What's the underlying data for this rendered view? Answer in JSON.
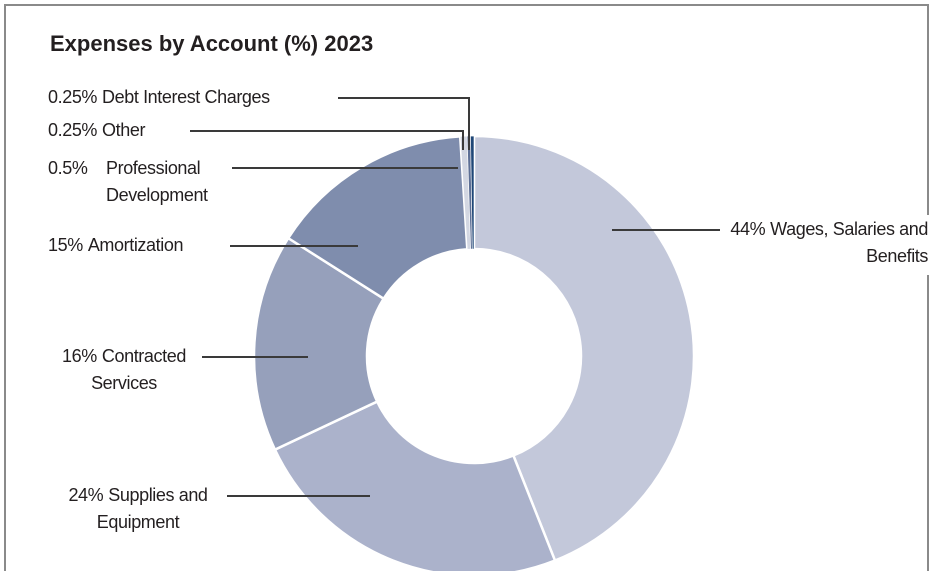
{
  "chart_data": {
    "type": "donut",
    "title": "Expenses by Account (%) 2023",
    "categories": [
      "Wages, Salaries and Benefits",
      "Supplies and Equipment",
      "Contracted Services",
      "Amortization",
      "Professional Development",
      "Other",
      "Debt Interest Charges"
    ],
    "values": [
      44,
      24,
      16,
      15,
      0.5,
      0.25,
      0.25
    ],
    "value_labels": [
      "44%",
      "24%",
      "16%",
      "15%",
      "0.5%",
      "0.25%",
      "0.25%"
    ],
    "colors": [
      "#c3c8da",
      "#abb2cb",
      "#96a0bb",
      "#7f8dad",
      "#d3d7e2",
      "#5d6f95",
      "#1f4777"
    ]
  }
}
